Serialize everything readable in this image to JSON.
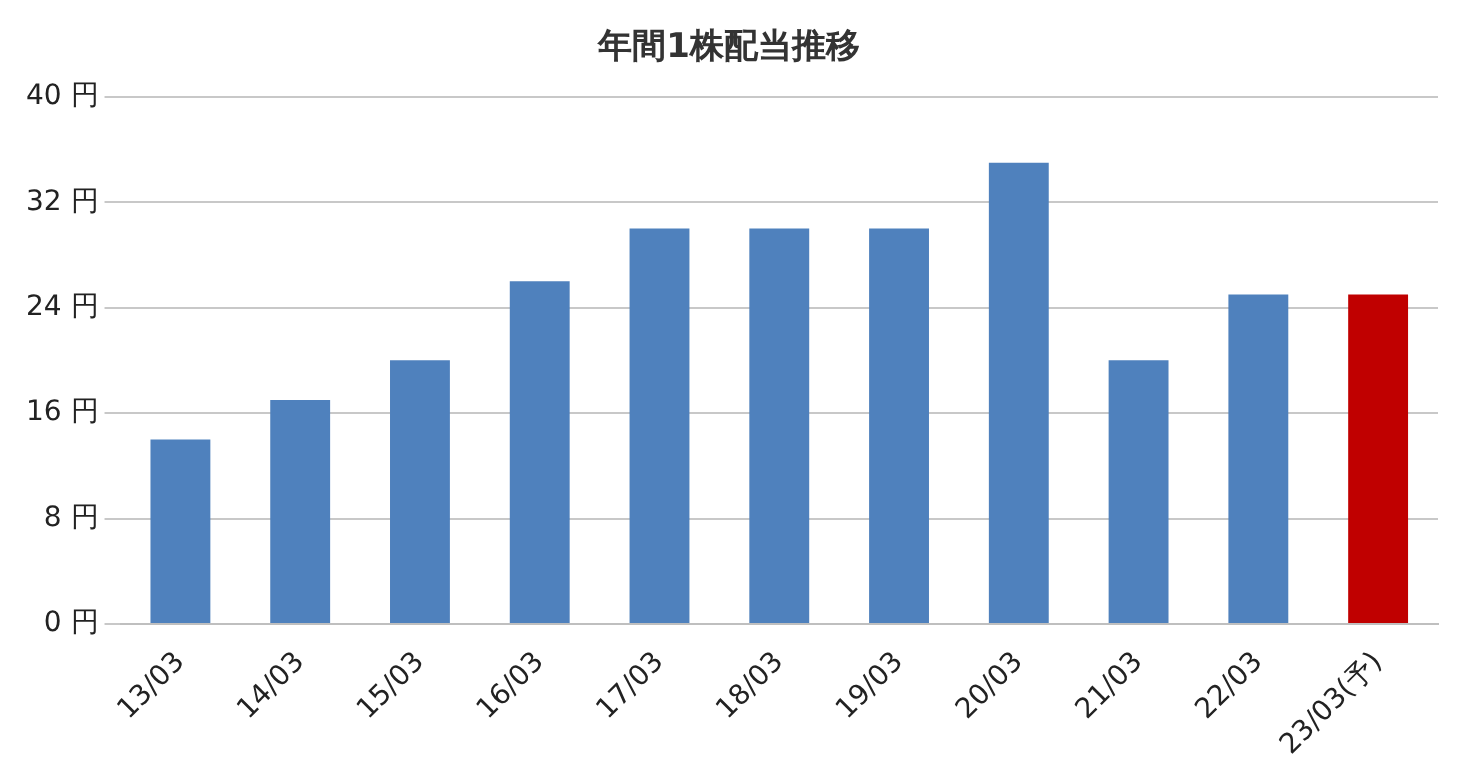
{
  "chart_data": {
    "type": "bar",
    "title": "年間1株配当推移",
    "categories": [
      "13/03",
      "14/03",
      "15/03",
      "16/03",
      "17/03",
      "18/03",
      "19/03",
      "20/03",
      "21/03",
      "22/03",
      "23/03(予)"
    ],
    "values": [
      14,
      17,
      20,
      26,
      30,
      30,
      30,
      35,
      20,
      25,
      25
    ],
    "colors": [
      "#4f81bd",
      "#4f81bd",
      "#4f81bd",
      "#4f81bd",
      "#4f81bd",
      "#4f81bd",
      "#4f81bd",
      "#4f81bd",
      "#4f81bd",
      "#4f81bd",
      "#c00000"
    ],
    "ylim": [
      0,
      40
    ],
    "yticks": [
      {
        "value": 0,
        "label": "0 円"
      },
      {
        "value": 8,
        "label": "8 円"
      },
      {
        "value": 16,
        "label": "16 円"
      },
      {
        "value": 24,
        "label": "24 円"
      },
      {
        "value": 32,
        "label": "32 円"
      },
      {
        "value": 40,
        "label": "40 円"
      }
    ],
    "grid": "y",
    "legend": false
  }
}
